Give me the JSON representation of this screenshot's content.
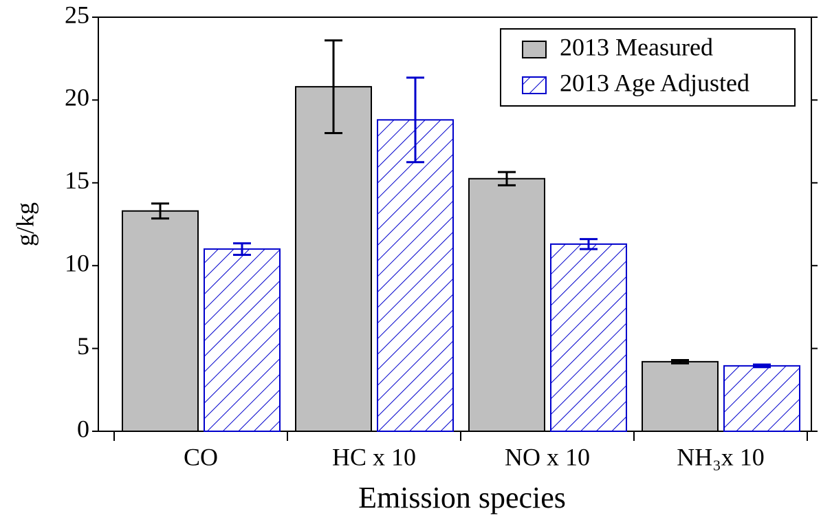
{
  "chart_data": {
    "type": "bar",
    "x_label": "Emission species",
    "y_label": "g/kg",
    "categories": [
      "CO",
      "HC x 10",
      "NO x 10",
      "NH₃x 10"
    ],
    "series": [
      {
        "name": "2013 Measured",
        "color": "#bfbfbf",
        "edge": "#000000",
        "hatch": false,
        "values": [
          13.3,
          20.8,
          15.25,
          4.2
        ],
        "errors": [
          0.45,
          2.8,
          0.4,
          0.1
        ]
      },
      {
        "name": "2013 Age Adjusted",
        "color": "#0000cc",
        "edge": "#0000cc",
        "hatch": true,
        "values": [
          11.0,
          18.8,
          11.3,
          3.95
        ],
        "errors": [
          0.35,
          2.55,
          0.3,
          0.08
        ]
      }
    ],
    "ylim": [
      0,
      25
    ],
    "yticks": [
      0,
      5,
      10,
      15,
      20,
      25
    ],
    "legend": "upper right"
  }
}
